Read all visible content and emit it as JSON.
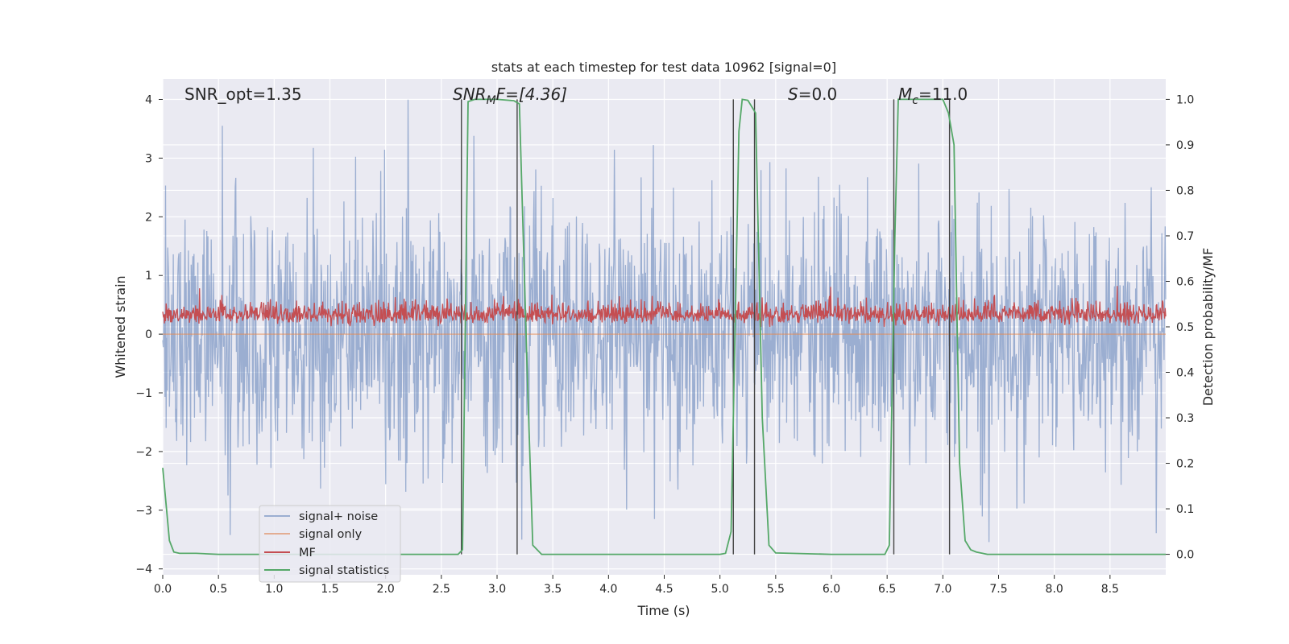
{
  "chart_data": {
    "type": "line",
    "title": "stats at each timestep for test data 10962 [signal=0]",
    "xlabel": "Time (s)",
    "ylabel": "Whitened strain",
    "y2label": "Detection probability/MF",
    "xlim": [
      0.0,
      9.0
    ],
    "ylim": [
      -4.1,
      4.35
    ],
    "y2lim": [
      -0.045,
      1.045
    ],
    "xticks": [
      "0.0",
      "0.5",
      "1.0",
      "1.5",
      "2.0",
      "2.5",
      "3.0",
      "3.5",
      "4.0",
      "4.5",
      "5.0",
      "5.5",
      "6.0",
      "6.5",
      "7.0",
      "7.5",
      "8.0",
      "8.5"
    ],
    "xtick_values": [
      0.0,
      0.5,
      1.0,
      1.5,
      2.0,
      2.5,
      3.0,
      3.5,
      4.0,
      4.5,
      5.0,
      5.5,
      6.0,
      6.5,
      7.0,
      7.5,
      8.0,
      8.5
    ],
    "yticks": [
      "4",
      "3",
      "2",
      "1",
      "0",
      "−1",
      "−2",
      "−3",
      "−4"
    ],
    "ytick_values": [
      4,
      3,
      2,
      1,
      0,
      -1,
      -2,
      -3,
      -4
    ],
    "y2ticks": [
      "1.0",
      "0.9",
      "0.8",
      "0.7",
      "0.6",
      "0.5",
      "0.4",
      "0.3",
      "0.2",
      "0.1",
      "0.0"
    ],
    "y2tick_values": [
      1.0,
      0.9,
      0.8,
      0.7,
      0.6,
      0.5,
      0.4,
      0.3,
      0.2,
      0.1,
      0.0
    ],
    "grid": true,
    "legend_placement": "lower-left",
    "annotations": {
      "snr_opt": "SNR_opt=1.35",
      "snr_mf_main": "SNR",
      "snr_mf_sub": "M",
      "snr_mf_rest": "F=[4.36]",
      "s_main": "S",
      "s_rest": "=0.0",
      "mc_main": "M",
      "mc_sub": "c",
      "mc_rest": "=11.0"
    },
    "series": [
      {
        "name": "signal+ noise",
        "color": "#4c72b0",
        "axis": "left",
        "description_values": {
          "center": 0.0,
          "typical_range": [
            -2.3,
            2.3
          ],
          "max": 4.0,
          "min": -3.7,
          "samples": 1800
        }
      },
      {
        "name": "signal only",
        "color": "#dd8452",
        "axis": "left",
        "values_constant": 0.0
      },
      {
        "name": "MF",
        "color": "#c44e52",
        "axis": "right",
        "description_values": {
          "center": 0.52,
          "typical_range": [
            0.5,
            0.6
          ],
          "max": 0.6,
          "min": 0.5,
          "samples": 1800
        }
      },
      {
        "name": "signal statistics",
        "color": "#55a868",
        "axis": "right",
        "x": [
          0.0,
          0.06,
          0.1,
          0.15,
          0.2,
          0.3,
          0.5,
          1.0,
          1.5,
          2.0,
          2.5,
          2.65,
          2.69,
          2.74,
          2.8,
          3.0,
          3.15,
          3.2,
          3.27,
          3.32,
          3.4,
          3.5,
          4.0,
          4.5,
          5.0,
          5.05,
          5.1,
          5.17,
          5.2,
          5.25,
          5.32,
          5.38,
          5.44,
          5.5,
          6.0,
          6.48,
          6.52,
          6.57,
          6.6,
          6.7,
          6.8,
          7.0,
          7.05,
          7.1,
          7.15,
          7.2,
          7.25,
          7.3,
          7.4,
          8.0,
          8.5,
          9.0
        ],
        "y": [
          0.19,
          0.03,
          0.005,
          0.002,
          0.002,
          0.002,
          0.0,
          0.0,
          0.0,
          0.0,
          0.0,
          0.0,
          0.01,
          0.995,
          1.0,
          1.0,
          0.997,
          0.99,
          0.4,
          0.02,
          0.0,
          0.0,
          0.0,
          0.0,
          0.0,
          0.002,
          0.05,
          0.93,
          1.0,
          0.998,
          0.97,
          0.3,
          0.02,
          0.003,
          0.0,
          0.0,
          0.02,
          0.7,
          1.0,
          1.0,
          1.0,
          1.0,
          0.97,
          0.9,
          0.2,
          0.03,
          0.01,
          0.005,
          0.0,
          0.0,
          0.0,
          0.0
        ]
      }
    ],
    "vertical_markers": [
      2.68,
      3.18,
      5.12,
      5.31,
      6.56,
      7.06
    ]
  }
}
